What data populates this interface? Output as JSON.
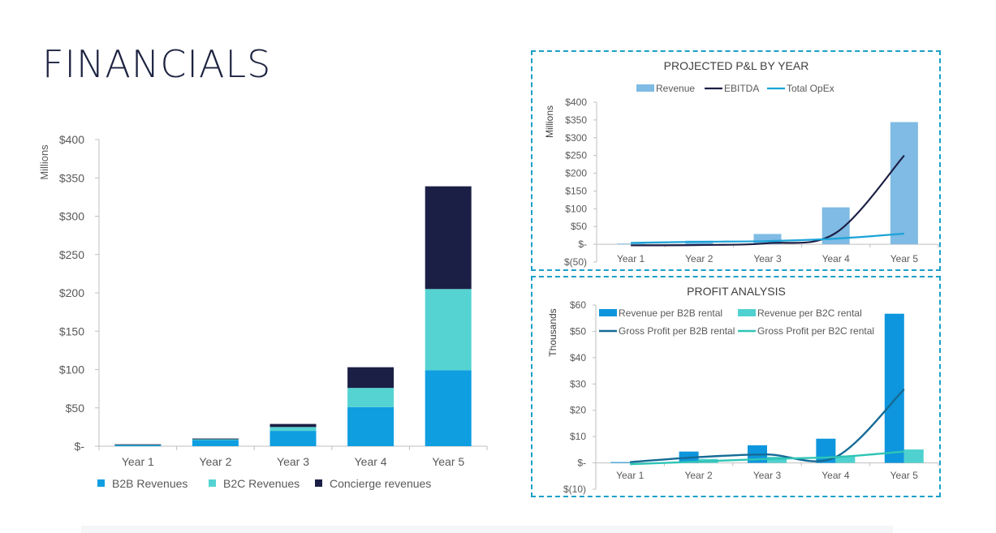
{
  "page": {
    "title": "FINANCIALS"
  },
  "colors": {
    "b2b": "#0f9ee0",
    "b2c": "#55d3d3",
    "concierge": "#1c1f45",
    "revenue_bar": "#7fbbe4",
    "ebitda": "#1c1f45",
    "opex": "#1ba3d9",
    "b2b_rental": "#0d96dd",
    "b2c_rental": "#4fd2cf",
    "gp_b2b": "#156b96",
    "gp_b2c": "#2ec4b6",
    "panel_border": "#1aa0c8",
    "axis": "#bfbfbf",
    "text": "#595959"
  },
  "chart_data": [
    {
      "type": "bar",
      "stacked": true,
      "title": "",
      "xlabel": "",
      "ylabel": "Millions",
      "categories": [
        "Year 1",
        "Year 2",
        "Year 3",
        "Year 4",
        "Year 5"
      ],
      "ylim": [
        0,
        400
      ],
      "yticks": [
        0,
        50,
        100,
        150,
        200,
        250,
        300,
        350,
        400
      ],
      "ytick_labels": [
        "$-",
        "$50",
        "$100",
        "$150",
        "$200",
        "$250",
        "$300",
        "$350",
        "$400"
      ],
      "legend_position": "bottom-left",
      "grid": false,
      "series": [
        {
          "name": "B2B Revenues",
          "values": [
            1.5,
            8,
            20,
            51,
            99
          ]
        },
        {
          "name": "B2C Revenues",
          "values": [
            0.5,
            1,
            5,
            25,
            106
          ]
        },
        {
          "name": "Concierge revenues",
          "values": [
            0.5,
            1,
            4,
            27,
            134
          ]
        }
      ]
    },
    {
      "type": "bar",
      "title": "PROJECTED P&L BY YEAR",
      "xlabel": "",
      "ylabel": "Millions",
      "categories": [
        "Year 1",
        "Year 2",
        "Year 3",
        "Year 4",
        "Year 5"
      ],
      "ylim": [
        -50,
        400
      ],
      "yticks": [
        -50,
        0,
        50,
        100,
        150,
        200,
        250,
        300,
        350,
        400
      ],
      "ytick_labels": [
        "$(50)",
        "$-",
        "$50",
        "$100",
        "$150",
        "$200",
        "$250",
        "$300",
        "$350",
        "$400"
      ],
      "legend_position": "top",
      "grid": false,
      "series": [
        {
          "name": "Revenue",
          "kind": "bar",
          "values": [
            2,
            10,
            29,
            104,
            344
          ]
        },
        {
          "name": "EBITDA",
          "kind": "line",
          "values": [
            -3,
            -2,
            3,
            32,
            250
          ]
        },
        {
          "name": "Total OpEx",
          "kind": "line",
          "values": [
            4,
            7,
            9,
            16,
            30
          ]
        }
      ]
    },
    {
      "type": "bar",
      "title": "PROFIT ANALYSIS",
      "xlabel": "",
      "ylabel": "Thousands",
      "categories": [
        "Year 1",
        "Year 2",
        "Year 3",
        "Year 4",
        "Year 5"
      ],
      "ylim": [
        -10,
        60
      ],
      "yticks": [
        -10,
        0,
        10,
        20,
        30,
        40,
        50,
        60
      ],
      "ytick_labels": [
        "$(10)",
        "$-",
        "$10",
        "$20",
        "$30",
        "$40",
        "$50",
        "$60"
      ],
      "legend_position": "top",
      "grid": false,
      "series": [
        {
          "name": "Revenue per B2B rental",
          "kind": "bar",
          "values": [
            0.3,
            4.3,
            6.7,
            9.2,
            56.7
          ]
        },
        {
          "name": "Revenue per B2C rental",
          "kind": "bar",
          "values": [
            -0.5,
            1.5,
            2.3,
            2.8,
            5.1
          ]
        },
        {
          "name": "Gross Profit per B2B rental",
          "kind": "line",
          "values": [
            0.3,
            2.2,
            3.2,
            2.2,
            28
          ]
        },
        {
          "name": "Gross Profit per B2C rental",
          "kind": "line",
          "values": [
            -0.5,
            0.5,
            1.5,
            2.2,
            4.3
          ]
        }
      ]
    }
  ]
}
